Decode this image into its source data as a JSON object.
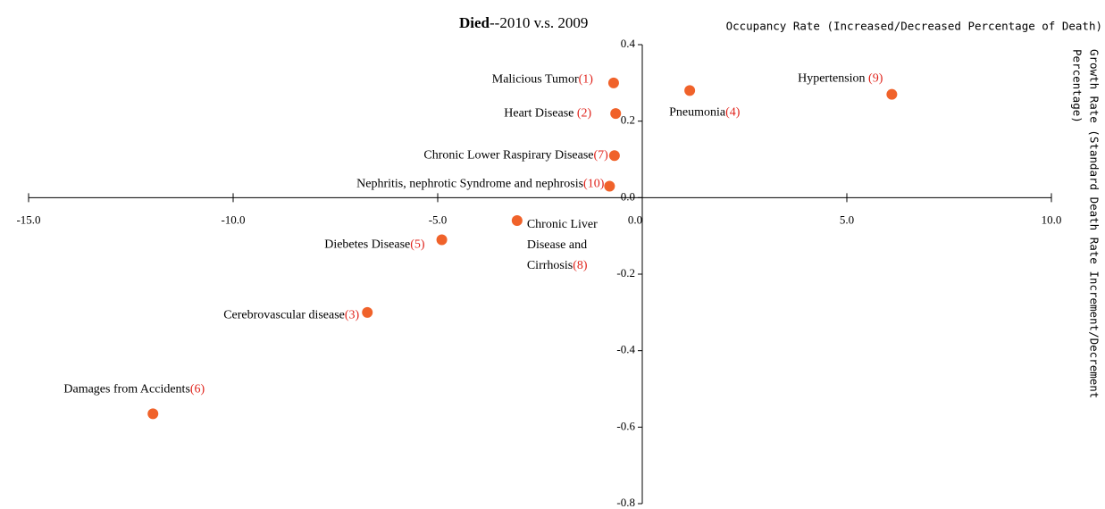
{
  "chart_data": {
    "type": "scatter",
    "title_bold": "Died",
    "title_rest": "--2010 v.s. 2009",
    "x_label": "Occupancy Rate (Increased/Decreased Percentage of Death)",
    "y_label": [
      "Growth Rate (Standard Death Rate Increment/Decrement",
      "Percentage)"
    ],
    "color": "#f0622a",
    "xlim": [
      -15,
      10
    ],
    "ylim": [
      -0.8,
      0.4
    ],
    "xticks": [
      {
        "value": -15,
        "label": "-15.0"
      },
      {
        "value": -10,
        "label": "-10.0"
      },
      {
        "value": -5,
        "label": "-5.0"
      },
      {
        "value": 0,
        "label": "0.0"
      },
      {
        "value": 5,
        "label": "5.0"
      },
      {
        "value": 10,
        "label": "10.0"
      }
    ],
    "yticks": [
      0.4,
      0.2,
      {
        "value": 0,
        "label": "0.0"
      },
      -0.2,
      -0.4,
      -0.6,
      -0.8
    ],
    "labels": [
      "Malicious Tumor",
      "Heart Disease ",
      "Chronic Lower Raspirary Disease",
      "Nephritis, nephrotic Syndrome and nephrosis",
      "Pneumonia",
      "Hypertension ",
      "Chronic Liver Disease and Cirrhosis",
      "Diebetes Disease",
      "Cerebrovascular disease",
      "Damages from Accidents"
    ],
    "ranks": [
      "(1)",
      "(2)",
      "(7)",
      "(10)",
      "(4)",
      "(9)",
      "(8)",
      "(5)",
      "(3)",
      "(6)"
    ],
    "x": [
      -0.7,
      -0.65,
      -0.68,
      -0.8,
      1.16,
      6.1,
      -3.06,
      -4.9,
      -6.72,
      -11.96
    ],
    "y": [
      0.3,
      0.22,
      0.11,
      0.03,
      0.28,
      0.27,
      -0.06,
      -0.11,
      -0.3,
      -0.565
    ]
  }
}
